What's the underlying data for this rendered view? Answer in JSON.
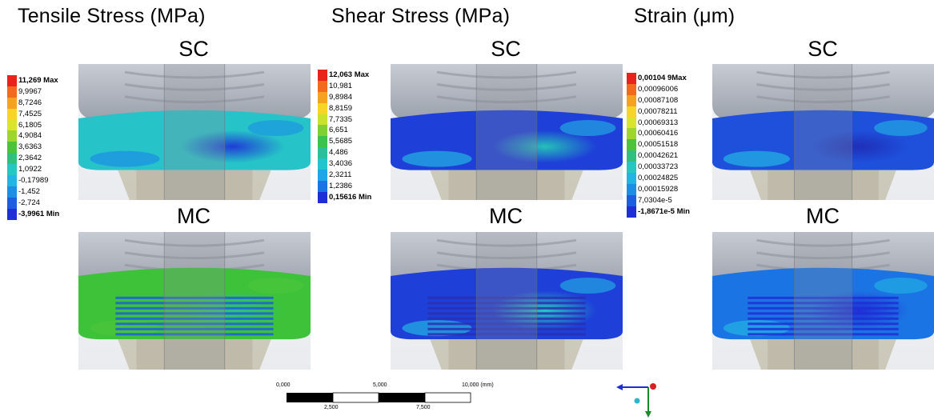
{
  "titles": {
    "tensile": "Tensile Stress (MPa)",
    "shear": "Shear Stress (MPa)",
    "strain": "Strain (μm)"
  },
  "labels": {
    "sc": "SC",
    "mc": "MC"
  },
  "legends": {
    "tensile": [
      "11,269 Max",
      "9,9967",
      "8,7246",
      "7,4525",
      "6,1805",
      "4,9084",
      "3,6363",
      "2,3642",
      "1,0922",
      "-0,17989",
      "-1,452",
      "-2,724",
      "-3,9961 Min"
    ],
    "shear": [
      "12,063 Max",
      "10,981",
      "9,8984",
      "8,8159",
      "7,7335",
      "6,651",
      "5,5685",
      "4,486",
      "3,4036",
      "2,3211",
      "1,2386",
      "0,15616 Min"
    ],
    "strain": [
      "0,00104 9Max",
      "0,00096006",
      "0,00087108",
      "0,00078211",
      "0,00069313",
      "0,00060416",
      "0,00051518",
      "0,00042621",
      "0,00033723",
      "0,00024825",
      "0,00015928",
      "7,0304e-5",
      "-1,8671e-5 Min"
    ]
  },
  "legend_colors_13": [
    "#e8231b",
    "#f26a1c",
    "#f4a21f",
    "#f7d528",
    "#d8e52c",
    "#9fd62e",
    "#4cc43a",
    "#2fbf7f",
    "#26c7c0",
    "#22b5e3",
    "#1b8fe6",
    "#1c5ee0",
    "#1f2fd6"
  ],
  "legend_colors_12": [
    "#e8231b",
    "#f26a1c",
    "#f4a21f",
    "#f7d528",
    "#c9e22d",
    "#7fd032",
    "#3ec24f",
    "#2cbf9a",
    "#24c4cf",
    "#1ea6e6",
    "#1b74e3",
    "#1f2fd6"
  ],
  "scalebar": {
    "top_labels": [
      "0,000",
      "5,000",
      "10,000 (mm)"
    ],
    "bottom_labels": [
      "2,500",
      "7,500"
    ]
  },
  "triad_icon": "axis-triad-icon"
}
